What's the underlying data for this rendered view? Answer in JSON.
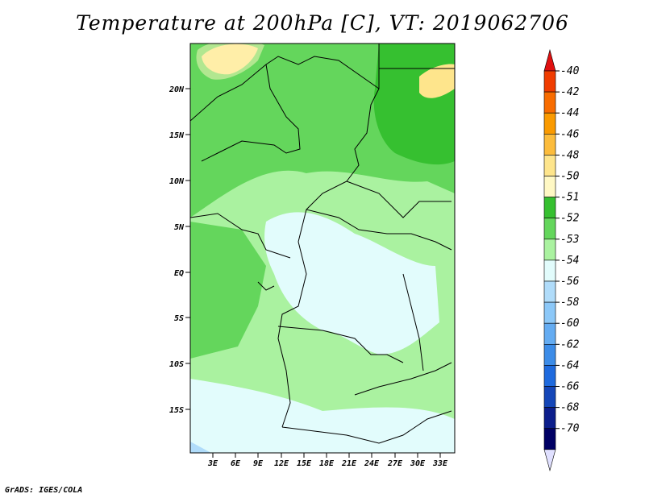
{
  "title": "Temperature at 200hPa [C], VT: 2019062706",
  "footer": "GrADS: IGES/COLA",
  "map": {
    "region": "Central Africa",
    "lon_ticks": [
      "3E",
      "6E",
      "9E",
      "12E",
      "15E",
      "18E",
      "21E",
      "24E",
      "27E",
      "30E",
      "33E"
    ],
    "lat_ticks": [
      "20N",
      "15N",
      "10N",
      "5N",
      "EQ",
      "5S",
      "10S",
      "15S"
    ],
    "lon_range": [
      0,
      35
    ],
    "lat_range": [
      -20,
      25
    ]
  },
  "legend": {
    "labels": [
      "-40",
      "-42",
      "-44",
      "-46",
      "-48",
      "-50",
      "-51",
      "-52",
      "-53",
      "-54",
      "-56",
      "-58",
      "-60",
      "-62",
      "-64",
      "-66",
      "-68",
      "-70"
    ],
    "colors": [
      "#e01010",
      "#f03c00",
      "#f86c00",
      "#fa9a00",
      "#fcbc3c",
      "#fee58c",
      "#fff8c4",
      "#36c030",
      "#64d65c",
      "#aaf2a0",
      "#e2fcfc",
      "#b0dcfa",
      "#8cc8f8",
      "#64acf2",
      "#3c8ce8",
      "#1e6ade",
      "#1446b8",
      "#0c1e8c",
      "#000064",
      "#e0e0ff"
    ]
  }
}
